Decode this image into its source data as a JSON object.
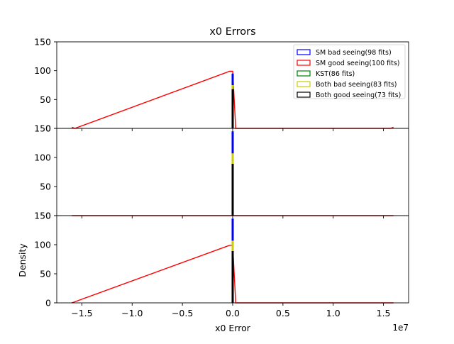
{
  "chart_data": {
    "type": "bar",
    "title": "x0 Errors",
    "xlabel": "x0 Error",
    "ylabel": "Density",
    "x_offset_label": "1e7",
    "xlim": [
      -17500000,
      17500000
    ],
    "ylim": [
      0,
      150
    ],
    "x_ticks": [
      -15000000,
      -10000000,
      -5000000,
      0,
      5000000,
      10000000,
      15000000
    ],
    "x_tick_labels": [
      "−1.5",
      "−1.0",
      "−0.5",
      "0.0",
      "0.5",
      "1.0",
      "1.5"
    ],
    "y_ticks": [
      0,
      50,
      100,
      150
    ],
    "y_tick_labels": [
      "0",
      "50",
      "100",
      "150"
    ],
    "grid": false,
    "legend_placement": "top-right",
    "legend": [
      {
        "label": "SM bad seeing(98 fits)",
        "color": "#0000ff"
      },
      {
        "label": "SM good seeing(100 fits)",
        "color": "#ff0000"
      },
      {
        "label": "KST(86 fits)",
        "color": "#008000"
      },
      {
        "label": "Both bad seeing(83 fits)",
        "color": "#cccc00"
      },
      {
        "label": "Both good seeing(73 fits)",
        "color": "#000000"
      }
    ],
    "panels": [
      {
        "name": "top",
        "show_xticklabels": false,
        "show_legend": true,
        "hists": [
          {
            "style": "step",
            "color": "#ff0000",
            "x": [
              -16000000,
              -15700000,
              -300000,
              0,
              300000,
              15700000,
              16000000
            ],
            "y": [
              2,
              0,
              99,
              99,
              0,
              0,
              2
            ]
          },
          {
            "style": "spike",
            "color": "#0000ff",
            "x": [
              0
            ],
            "y": [
              95
            ]
          },
          {
            "style": "spike",
            "color": "#cccc00",
            "x": [
              0
            ],
            "y": [
              75
            ]
          },
          {
            "style": "spike",
            "color": "#000000",
            "x": [
              0
            ],
            "y": [
              68
            ]
          }
        ]
      },
      {
        "name": "middle",
        "show_xticklabels": false,
        "show_legend": false,
        "hists": [
          {
            "style": "step",
            "color": "#ff0000",
            "x": [
              -16000000,
              16000000
            ],
            "y": [
              0,
              0
            ]
          },
          {
            "style": "spike",
            "color": "#0000ff",
            "x": [
              0
            ],
            "y": [
              145
            ]
          },
          {
            "style": "spike",
            "color": "#cccc00",
            "x": [
              0
            ],
            "y": [
              107
            ]
          },
          {
            "style": "spike",
            "color": "#000000",
            "x": [
              0
            ],
            "y": [
              89
            ]
          }
        ]
      },
      {
        "name": "bottom",
        "show_xticklabels": true,
        "show_legend": false,
        "hists": [
          {
            "style": "step",
            "color": "#ff0000",
            "x": [
              -16000000,
              -300000,
              0,
              300000,
              16000000
            ],
            "y": [
              0,
              99,
              99,
              0,
              0
            ]
          },
          {
            "style": "spike",
            "color": "#0000ff",
            "x": [
              0
            ],
            "y": [
              145
            ]
          },
          {
            "style": "spike",
            "color": "#cccc00",
            "x": [
              0
            ],
            "y": [
              107
            ]
          },
          {
            "style": "spike",
            "color": "#000000",
            "x": [
              0
            ],
            "y": [
              89
            ]
          }
        ]
      }
    ]
  }
}
